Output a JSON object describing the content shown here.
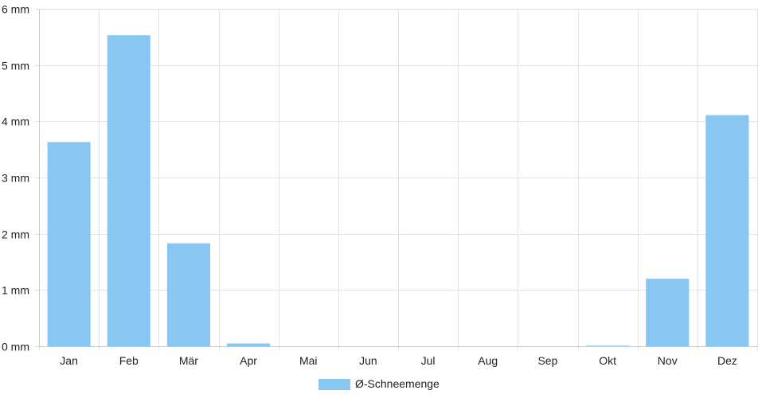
{
  "chart_data": {
    "type": "bar",
    "categories": [
      "Jan",
      "Feb",
      "Mär",
      "Apr",
      "Mai",
      "Jun",
      "Jul",
      "Aug",
      "Sep",
      "Okt",
      "Nov",
      "Dez"
    ],
    "series": [
      {
        "name": "Ø-Schneemenge",
        "color": "#87c7f2",
        "values": [
          3.63,
          5.53,
          1.83,
          0.05,
          0,
          0,
          0,
          0,
          0,
          0.01,
          1.2,
          4.11
        ]
      }
    ],
    "ylim": [
      0,
      6
    ],
    "y_ticks": [
      {
        "value": 0,
        "label": "0 mm"
      },
      {
        "value": 1,
        "label": "1 mm"
      },
      {
        "value": 2,
        "label": "2 mm"
      },
      {
        "value": 3,
        "label": "3 mm"
      },
      {
        "value": 4,
        "label": "4 mm"
      },
      {
        "value": 5,
        "label": "5 mm"
      },
      {
        "value": 6,
        "label": "6 mm"
      }
    ],
    "grid": true,
    "legend": {
      "position": "bottom-center",
      "label": "Ø-Schneemenge"
    },
    "title": "",
    "xlabel": "",
    "ylabel": ""
  }
}
